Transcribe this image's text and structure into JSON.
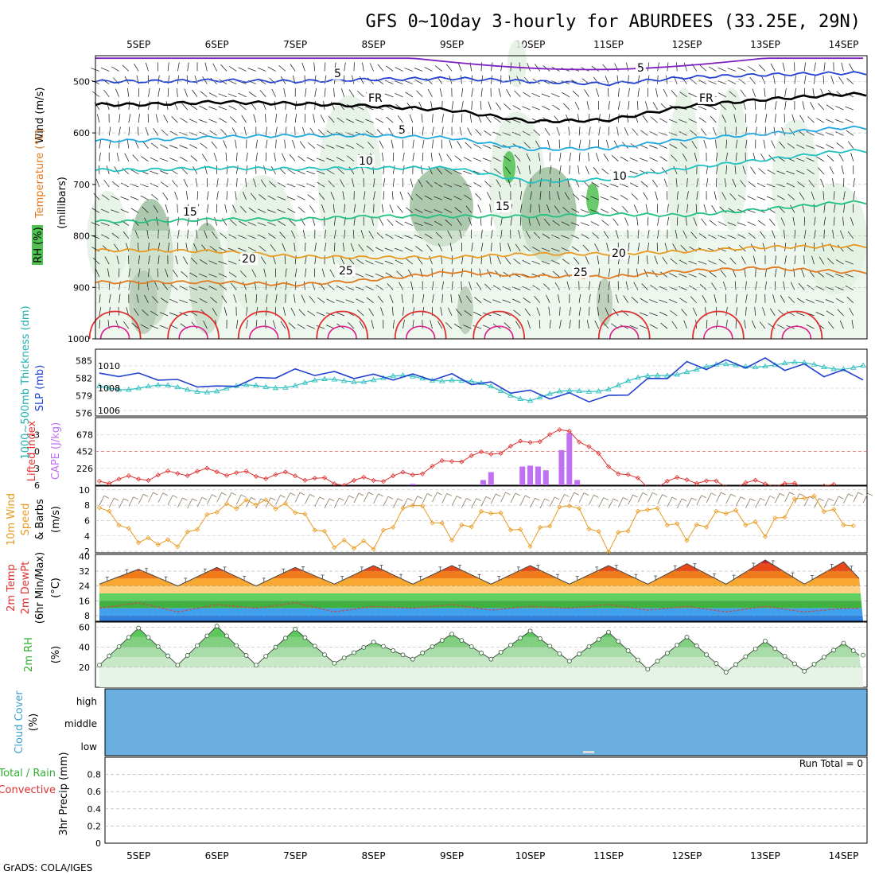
{
  "title": "GFS 0~10day 3-hourly for ABURDEES (33.25E, 29N)",
  "footer": "GrADS: COLA/IGES",
  "dates": [
    "5SEP",
    "6SEP",
    "7SEP",
    "8SEP",
    "9SEP",
    "10SEP",
    "11SEP",
    "12SEP",
    "13SEP",
    "14SEP"
  ],
  "colors": {
    "purple": "#8020c0",
    "blue": "#2040d0",
    "black": "#000000",
    "cyan": "#20a8e0",
    "teal": "#20c0c0",
    "green": "#20c080",
    "orange": "#e89a20",
    "darkorange": "#e07a20",
    "red": "#e03030",
    "magenta": "#e02090",
    "rh_light": "#e3f1e3",
    "rh_mid": "#9fc09f",
    "rh_dark": "#6f8f6f",
    "rh_bright": "#50c050",
    "cloud": "#6aaee0",
    "cape": "#c070f0"
  },
  "panels": {
    "upper": {
      "ylabel_wind": "Wind (m/s)",
      "ylabel_temp": "Temperature (°C)",
      "ylabel_rh": "RH (%)",
      "ylabel_mb": "(millibars)",
      "yticks": [
        "500",
        "600",
        "700",
        "800",
        "900",
        "1000"
      ],
      "contour_labels": [
        "5",
        "5",
        "FR",
        "FR",
        "5",
        "10",
        "10",
        "15",
        "15",
        "20",
        "20",
        "25",
        "25"
      ]
    },
    "slp": {
      "ylabel_thick": "1000~500mb Thickness (dm)",
      "ylabel_slp": "SLP (mb)",
      "yticks_left": [
        "585",
        "582",
        "579",
        "576"
      ],
      "yticks_right": [
        "1010",
        "1008",
        "1006"
      ]
    },
    "cape": {
      "ylabel_li": "Lifted Index",
      "ylabel_cape": "CAPE (J/kg)",
      "yticks_left": [
        "-3",
        "0",
        "3",
        "6"
      ],
      "yticks_right": [
        "678",
        "452",
        "226"
      ]
    },
    "wind10": {
      "ylabel1": "10m Wind",
      "ylabel2": "Speed",
      "ylabel3": "& Barbs",
      "ylabel4": "(m/s)",
      "yticks": [
        "10",
        "8",
        "6",
        "4",
        "2"
      ]
    },
    "temp": {
      "ylabel1": "2m Temp",
      "ylabel2": "2m DewPt",
      "ylabel3": "(6hr Min/Max)",
      "ylabel4": "(°C)",
      "yticks": [
        "40",
        "32",
        "24",
        "16",
        "8"
      ]
    },
    "rh": {
      "ylabel1": "2m RH",
      "ylabel2": "(%)",
      "yticks": [
        "60",
        "40",
        "20"
      ]
    },
    "cloud": {
      "ylabel1": "Cloud Cover",
      "ylabel2": "(%)",
      "levels": [
        "high",
        "middle",
        "low"
      ]
    },
    "precip": {
      "ylabel1": "Total / Rain",
      "ylabel2": "Convective",
      "ylabel3": "3hr Precip (mm)",
      "yticks": [
        "0.8",
        "0.6",
        "0.4",
        "0.2",
        "0"
      ],
      "run_total": "Run Total = 0"
    }
  },
  "chart_data": [
    {
      "type": "line",
      "name": "upper-air cross-section",
      "y_axis": "pressure (mb)",
      "ylim": [
        1000,
        450
      ],
      "x": [
        "5SEP",
        "6SEP",
        "7SEP",
        "8SEP",
        "9SEP",
        "10SEP",
        "11SEP",
        "12SEP",
        "13SEP",
        "14SEP"
      ],
      "isotherms_level_mb": {
        "-5": [
          500,
          498,
          500,
          496,
          494,
          500,
          505,
          492,
          487,
          484
        ],
        "FR": [
          545,
          540,
          543,
          548,
          556,
          578,
          575,
          548,
          535,
          525
        ],
        "5": [
          615,
          608,
          605,
          605,
          610,
          632,
          630,
          612,
          602,
          590
        ],
        "10": [
          672,
          668,
          670,
          668,
          668,
          695,
          690,
          668,
          652,
          635
        ],
        "15": [
          772,
          768,
          768,
          762,
          762,
          762,
          758,
          760,
          748,
          735
        ],
        "20": [
          828,
          830,
          840,
          842,
          842,
          835,
          835,
          830,
          822,
          820
        ],
        "25": [
          890,
          890,
          895,
          885,
          870,
          878,
          880,
          868,
          862,
          870
        ]
      }
    },
    {
      "type": "line",
      "name": "thickness and slp",
      "x": [
        "5SEP",
        "6SEP",
        "7SEP",
        "8SEP",
        "9SEP",
        "10SEP",
        "11SEP",
        "12SEP",
        "13SEP",
        "14SEP"
      ],
      "series": [
        {
          "name": "1000~500mb Thickness (dm)",
          "values": [
            580.5,
            580.0,
            581.0,
            582.0,
            582.0,
            578.5,
            580.5,
            583.5,
            584.5,
            584.0
          ]
        },
        {
          "name": "SLP (mb)",
          "values": [
            1009.2,
            1008.0,
            1009.5,
            1009.0,
            1009.0,
            1007.5,
            1007.0,
            1010.0,
            1010.3,
            1009.2
          ]
        }
      ],
      "ylim_thickness": [
        575.5,
        587
      ],
      "ylim_slp": [
        1005.5,
        1011.5
      ]
    },
    {
      "type": "bar",
      "name": "cape and lifted index",
      "cape_bars": [
        {
          "x": "8.5SEP",
          "value": 18
        },
        {
          "x": "9.4SEP",
          "value": 70
        },
        {
          "x": "9.5SEP",
          "value": 175
        },
        {
          "x": "9.9SEP",
          "value": 250
        },
        {
          "x": "10.0SEP",
          "value": 262
        },
        {
          "x": "10.1SEP",
          "value": 250
        },
        {
          "x": "10.2SEP",
          "value": 200
        },
        {
          "x": "10.4SEP",
          "value": 470
        },
        {
          "x": "10.5SEP",
          "value": 700
        },
        {
          "x": "10.6SEP",
          "value": 70
        }
      ],
      "lifted_index": [
        {
          "x": "4.5SEP",
          "value": 5.2
        },
        {
          "x": "5.0SEP",
          "value": 4.8
        },
        {
          "x": "5.5SEP",
          "value": 3.8
        },
        {
          "x": "6.0SEP",
          "value": 3.5
        },
        {
          "x": "6.5SEP",
          "value": 4.3
        },
        {
          "x": "7.0SEP",
          "value": 4.2
        },
        {
          "x": "7.5SEP",
          "value": 5.6
        },
        {
          "x": "8.0SEP",
          "value": 5.0
        },
        {
          "x": "8.5SEP",
          "value": 4.0
        },
        {
          "x": "9.0SEP",
          "value": 1.6
        },
        {
          "x": "9.5SEP",
          "value": 0.3
        },
        {
          "x": "10.0SEP",
          "value": -1.8
        },
        {
          "x": "10.5SEP",
          "value": -3.8
        },
        {
          "x": "11.0SEP",
          "value": 2.5
        },
        {
          "x": "11.5SEP",
          "value": 6.2
        },
        {
          "x": "12.0SEP",
          "value": 4.8
        },
        {
          "x": "12.5SEP",
          "value": 6.1
        },
        {
          "x": "13.0SEP",
          "value": 5.5
        },
        {
          "x": "13.5SEP",
          "value": 6.4
        }
      ],
      "cape_ylim": [
        0,
        904
      ],
      "li_ylim": [
        6,
        -6
      ]
    },
    {
      "type": "line",
      "name": "10m wind speed",
      "x": [
        "4.5SEP",
        "5.0SEP",
        "5.5SEP",
        "6.0SEP",
        "6.5SEP",
        "7.0SEP",
        "7.5SEP",
        "8.0SEP",
        "8.5SEP",
        "9.0SEP",
        "9.5SEP",
        "10.0SEP",
        "10.5SEP",
        "11.0SEP",
        "11.5SEP",
        "12.0SEP",
        "12.5SEP",
        "13.0SEP",
        "13.5SEP",
        "14.0SEP",
        "14.2SEP"
      ],
      "values": [
        8.0,
        3.5,
        3.0,
        7.5,
        8.5,
        7.5,
        3.0,
        2.8,
        8.5,
        4.0,
        7.5,
        3.2,
        8.5,
        2.5,
        8.0,
        4.0,
        7.5,
        4.5,
        9.5,
        6.0,
        4.0
      ],
      "ylim": [
        1.8,
        10.5
      ]
    },
    {
      "type": "area",
      "name": "2m temperature and dewpoint",
      "x": [
        "4.5SEP",
        "5.0SEP",
        "5.5SEP",
        "6.0SEP",
        "6.5SEP",
        "7.0SEP",
        "7.5SEP",
        "8.0SEP",
        "8.5SEP",
        "9.0SEP",
        "9.5SEP",
        "10.0SEP",
        "10.5SEP",
        "11.0SEP",
        "11.5SEP",
        "12.0SEP",
        "12.5SEP",
        "13.0SEP",
        "13.5SEP",
        "14.0SEP",
        "14.2SEP"
      ],
      "series": [
        {
          "name": "2m Temp",
          "values": [
            25,
            33,
            24,
            34,
            24,
            34,
            25,
            35,
            25,
            35,
            25,
            35,
            25,
            35,
            25,
            36,
            25,
            38,
            25,
            37,
            28
          ]
        },
        {
          "name": "2m DewPt",
          "values": [
            12,
            15,
            10,
            14,
            12,
            15,
            10,
            13,
            12,
            14,
            11,
            13,
            12,
            14,
            11,
            13,
            10,
            13,
            10,
            12,
            12
          ]
        }
      ],
      "ylim": [
        5,
        41
      ]
    },
    {
      "type": "area",
      "name": "2m relative humidity",
      "x": [
        "4.5SEP",
        "5.0SEP",
        "5.5SEP",
        "6.0SEP",
        "6.5SEP",
        "7.0SEP",
        "7.5SEP",
        "8.0SEP",
        "8.5SEP",
        "9.0SEP",
        "9.5SEP",
        "10.0SEP",
        "10.5SEP",
        "11.0SEP",
        "11.5SEP",
        "12.0SEP",
        "12.5SEP",
        "13.0SEP",
        "13.5SEP",
        "14.0SEP",
        "14.2SEP"
      ],
      "values": [
        22,
        59,
        22,
        61,
        22,
        58,
        24,
        45,
        28,
        53,
        28,
        56,
        26,
        55,
        18,
        50,
        15,
        46,
        16,
        44,
        32
      ],
      "ylim": [
        0,
        65
      ]
    },
    {
      "type": "bar",
      "name": "3hr precipitation",
      "values": [],
      "ylim": [
        0,
        1.0
      ]
    }
  ]
}
